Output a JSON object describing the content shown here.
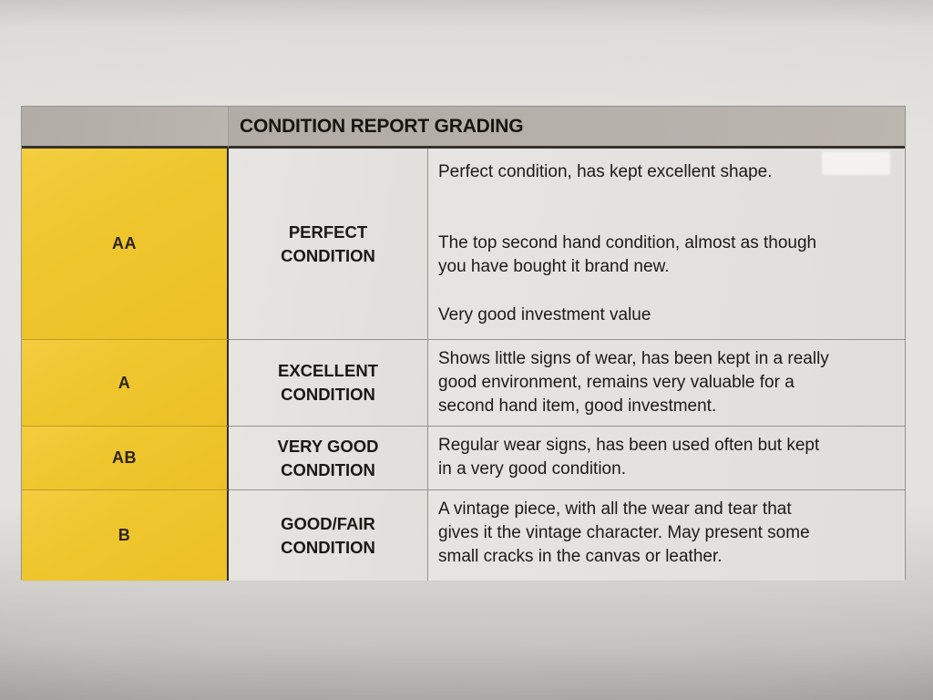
{
  "photo": {
    "colors": {
      "paper": "#e3e1dd",
      "header_bg": "#b3aea7",
      "cell_bg": "#e4e2de",
      "grade_column_bg": "#eec62d",
      "heavy_line": "#2e2b25",
      "thin_line": "#96938d",
      "text": "#1d1b18"
    }
  },
  "table": {
    "header": {
      "title": "CONDITION REPORT GRADING"
    },
    "rows": [
      {
        "grade": "AA",
        "name": "PERFECT\nCONDITION",
        "paragraphs": [
          "Perfect condition, has kept excellent shape.",
          "The top second hand condition, almost as though\nyou have bought it brand new.",
          "Very good investment value"
        ]
      },
      {
        "grade": "A",
        "name": "EXCELLENT\nCONDITION",
        "paragraphs": [
          "Shows little signs of wear, has been kept in a really\ngood environment, remains very valuable for a\nsecond hand item, good investment."
        ]
      },
      {
        "grade": "AB",
        "name": "VERY GOOD\nCONDITION",
        "paragraphs": [
          "Regular wear signs, has been used often but kept\nin a very good condition."
        ]
      },
      {
        "grade": "B",
        "name": "GOOD/FAIR\nCONDITION",
        "paragraphs": [
          "A vintage piece, with all the wear and tear that\ngives it the vintage character. May present some\nsmall cracks in the canvas or leather."
        ]
      }
    ]
  }
}
